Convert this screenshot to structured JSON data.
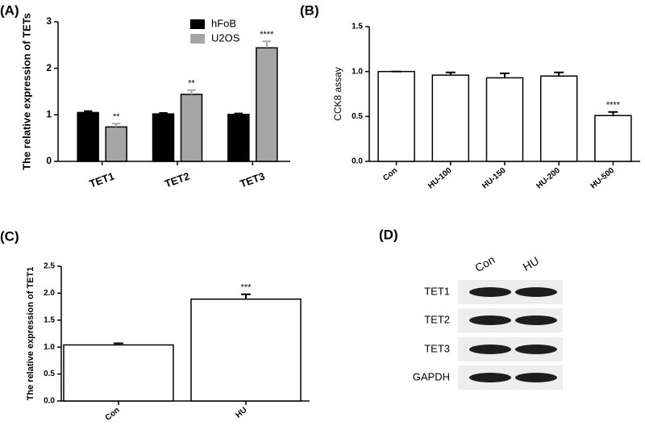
{
  "chart_data": [
    {
      "type": "bar",
      "label": "(A)",
      "ylabel": "The relative expression of TETs",
      "categories": [
        "TET1",
        "TET2",
        "TET3"
      ],
      "series": [
        {
          "name": "hFoB",
          "color": "#000000",
          "values": [
            1.05,
            1.02,
            1.01
          ],
          "errors": [
            0.03,
            0.02,
            0.02
          ]
        },
        {
          "name": "U2OS",
          "color": "#a6a6a6",
          "values": [
            0.74,
            1.44,
            2.44
          ],
          "errors": [
            0.07,
            0.09,
            0.14
          ],
          "annotations": [
            "**",
            "**",
            "****"
          ]
        }
      ],
      "ylim": [
        0,
        3
      ],
      "yticks": [
        0,
        1,
        2,
        3
      ],
      "legend": "top-right"
    },
    {
      "type": "bar",
      "label": "(B)",
      "ylabel": "CCK8 assay",
      "categories": [
        "Con",
        "HU-100",
        "HU-150",
        "HU-200",
        "HU-500"
      ],
      "series": [
        {
          "color": "#ffffff",
          "values": [
            1.0,
            0.96,
            0.93,
            0.95,
            0.51
          ],
          "errors": [
            0.0,
            0.03,
            0.05,
            0.04,
            0.04
          ],
          "annotations": [
            null,
            null,
            null,
            null,
            "****"
          ]
        }
      ],
      "ylim": [
        0,
        1.5
      ],
      "yticks": [
        {
          "value": 0,
          "label": "0.0"
        },
        0.5,
        {
          "value": 1,
          "label": "1.0"
        },
        1.5
      ]
    },
    {
      "type": "bar",
      "label": "(C)",
      "ylabel": "The relative expression of TET1",
      "categories": [
        "Con",
        "HU"
      ],
      "series": [
        {
          "color": "#ffffff",
          "values": [
            1.04,
            1.89
          ],
          "errors": [
            0.03,
            0.09
          ],
          "annotations": [
            null,
            "***"
          ]
        }
      ],
      "ylim": [
        0,
        2.5
      ],
      "yticks": [
        {
          "value": 0,
          "label": "0.0"
        },
        0.5,
        {
          "value": 1,
          "label": "1.0"
        },
        1.5,
        {
          "value": 2,
          "label": "2.0"
        },
        2.5
      ]
    }
  ],
  "blot": {
    "label": "(D)",
    "columns": [
      "Con",
      "HU"
    ],
    "rows": [
      "TET1",
      "TET2",
      "TET3",
      "GAPDH"
    ]
  }
}
